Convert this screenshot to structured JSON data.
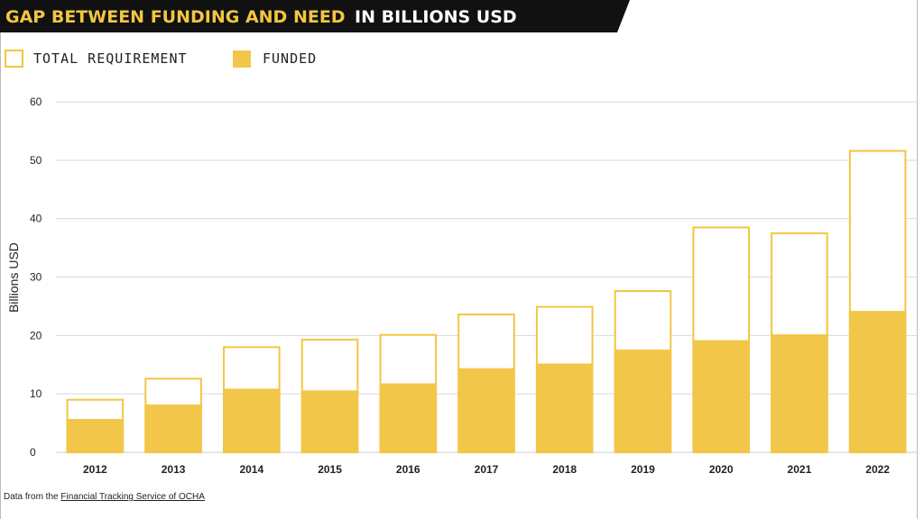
{
  "header": {
    "title_highlight": "GAP BETWEEN FUNDING AND NEED",
    "title_rest": "IN BILLIONS USD"
  },
  "legend": {
    "total_label": "TOTAL REQUIREMENT",
    "funded_label": "FUNDED"
  },
  "colors": {
    "accent": "#f2c641",
    "banner": "#111111"
  },
  "source": {
    "prefix": "Data from the ",
    "link_text": "Financial Tracking Service of OCHA"
  },
  "chart_data": {
    "type": "bar",
    "title": "GAP BETWEEN FUNDING AND NEED IN BILLIONS USD",
    "xlabel": "",
    "ylabel": "Billions USD",
    "ylim": [
      0,
      60
    ],
    "yticks": [
      "0",
      "10",
      "20",
      "30",
      "40",
      "50",
      "60"
    ],
    "grid": true,
    "legend_position": "top-left",
    "categories": [
      "2012",
      "2013",
      "2014",
      "2015",
      "2016",
      "2017",
      "2018",
      "2019",
      "2020",
      "2021",
      "2022"
    ],
    "series": [
      {
        "name": "TOTAL REQUIREMENT",
        "values": [
          9.0,
          12.6,
          18.0,
          19.3,
          20.1,
          23.6,
          24.9,
          27.6,
          38.5,
          37.5,
          51.6
        ]
      },
      {
        "name": "FUNDED",
        "values": [
          5.7,
          8.2,
          10.9,
          10.6,
          11.8,
          14.4,
          15.2,
          17.6,
          19.2,
          20.2,
          24.2
        ]
      }
    ]
  }
}
